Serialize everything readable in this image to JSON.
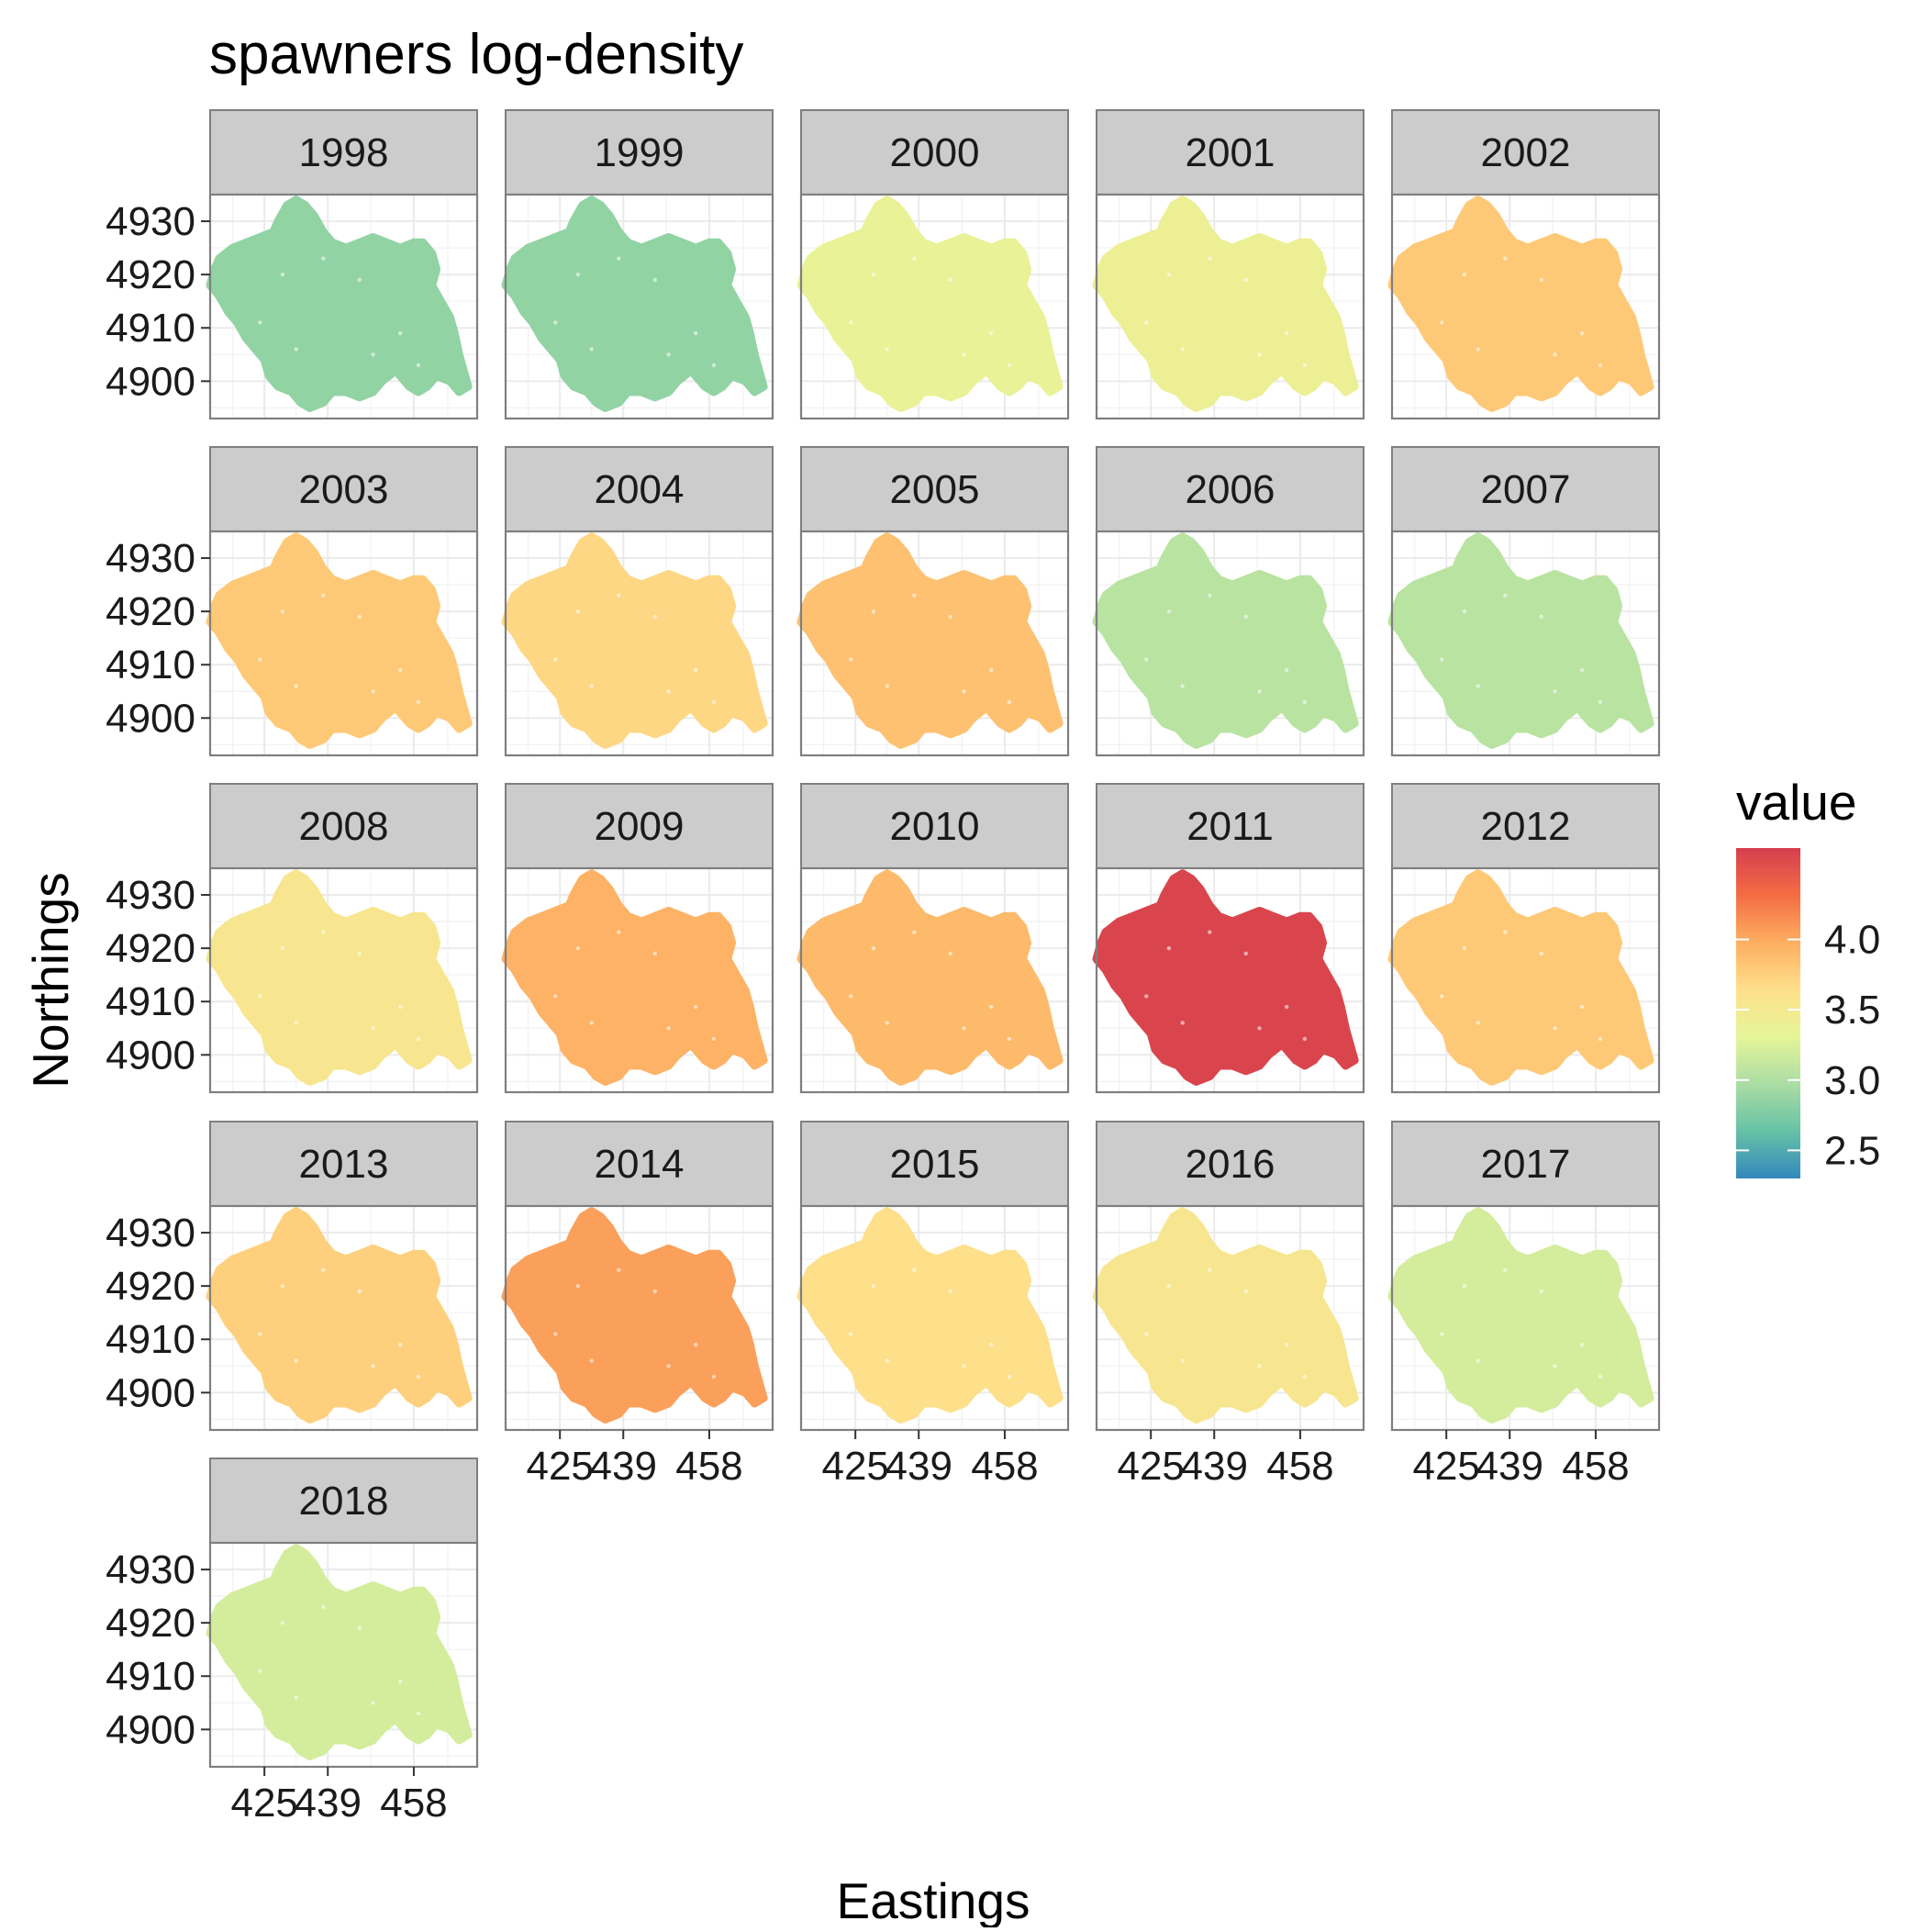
{
  "chart_data": {
    "type": "scatter",
    "title": "spawners log-density",
    "xlabel": "Eastings",
    "ylabel": "Northings",
    "facets": [
      "1998",
      "1999",
      "2000",
      "2001",
      "2002",
      "2003",
      "2004",
      "2005",
      "2006",
      "2007",
      "2008",
      "2009",
      "2010",
      "2011",
      "2012",
      "2013",
      "2014",
      "2015",
      "2016",
      "2017",
      "2018"
    ],
    "facet_value": [
      2.85,
      2.85,
      3.35,
      3.4,
      3.8,
      3.8,
      3.7,
      3.85,
      3.05,
      3.05,
      3.55,
      3.95,
      3.9,
      4.6,
      3.8,
      3.75,
      4.05,
      3.65,
      3.55,
      3.2,
      3.2
    ],
    "x_ticks": [
      "425",
      "439",
      "458"
    ],
    "x_tick_values": [
      425,
      439,
      458
    ],
    "y_ticks": [
      "4900",
      "4910",
      "4920",
      "4930"
    ],
    "y_tick_values": [
      4900,
      4910,
      4920,
      4930
    ],
    "xlim": [
      413,
      472
    ],
    "ylim": [
      4893,
      4935
    ],
    "grid": true,
    "legend": {
      "title": "value",
      "position": "right",
      "ticks": [
        "2.5",
        "3.0",
        "3.5",
        "4.0"
      ],
      "tick_values": [
        2.5,
        3.0,
        3.5,
        4.0
      ],
      "range": [
        2.3,
        4.65
      ]
    },
    "colors": {
      "palette": [
        "#3288BD",
        "#66C2A5",
        "#ABDDA4",
        "#E6F598",
        "#FEE08B",
        "#FDAE61",
        "#F46D43",
        "#D53E4F"
      ],
      "strip_fill": "#cccccc",
      "panel_border": "#7f7f7f"
    }
  }
}
